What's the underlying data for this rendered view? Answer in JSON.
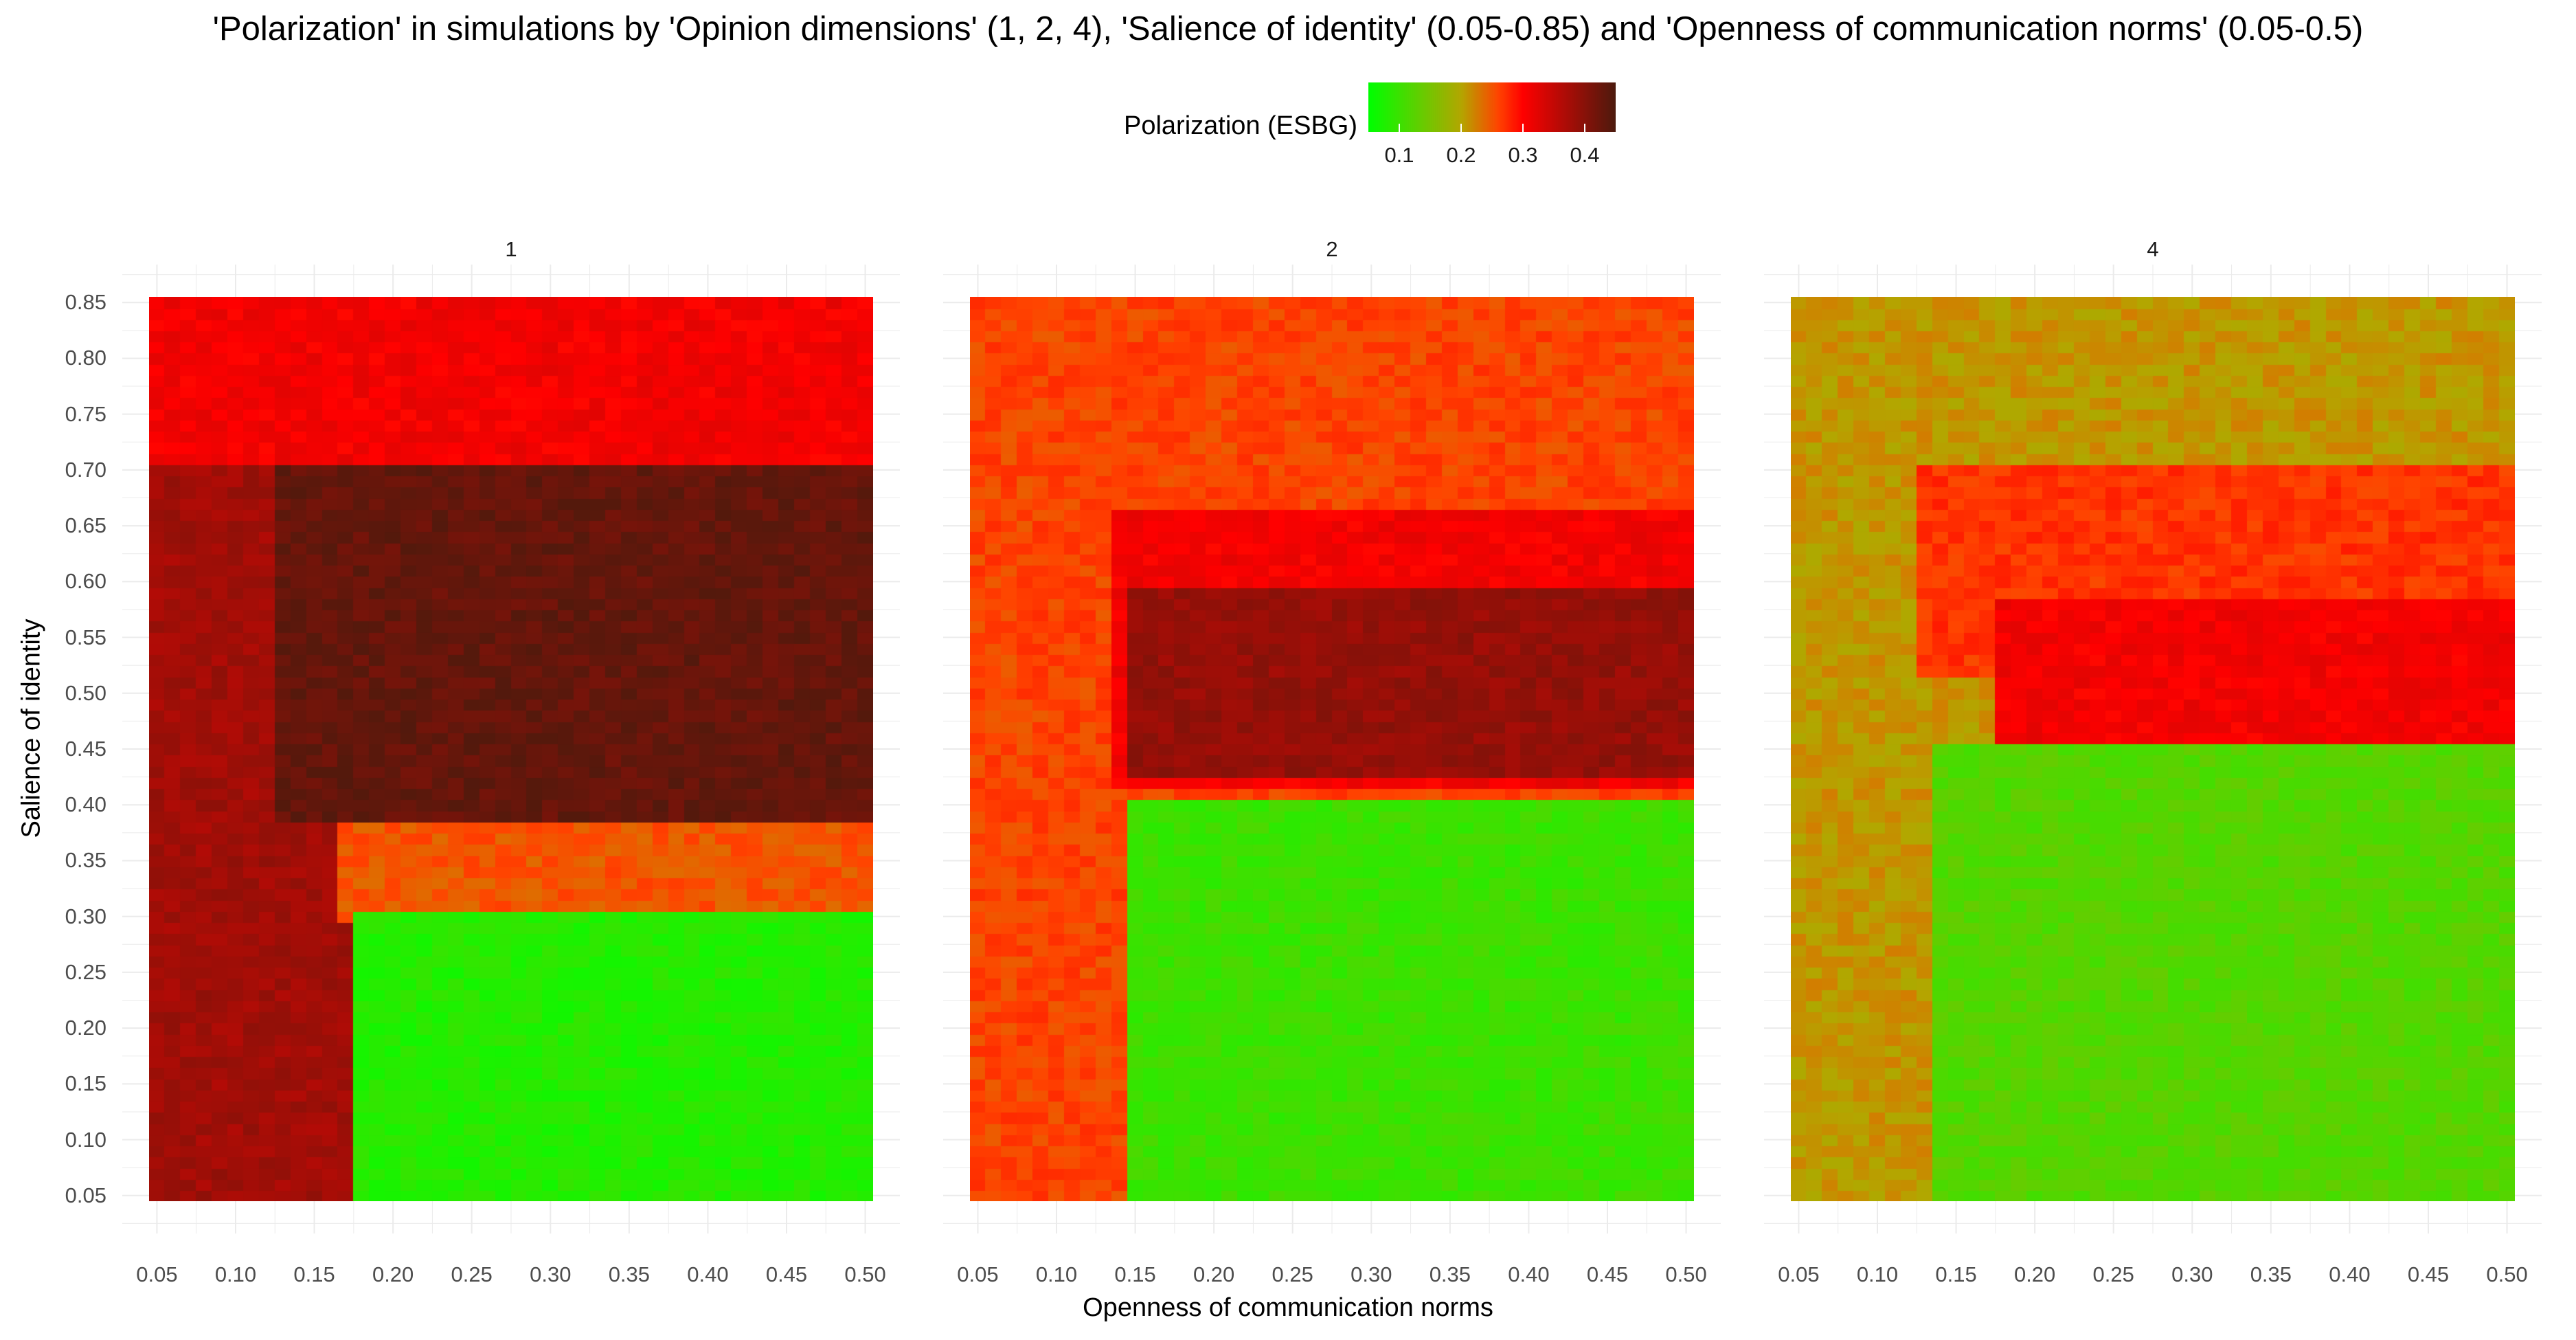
{
  "title": "'Polarization' in simulations by 'Opinion dimensions' (1, 2, 4), 'Salience of identity' (0.05-0.85) and 'Openness of communication norms' (0.05-0.5)",
  "colors": {
    "scale": [
      "#00ff00",
      "#b3a600",
      "#ff4400",
      "#ff0000",
      "#4d1a0d"
    ],
    "scale_breaks": [
      0.05,
      0.2,
      0.26,
      0.3,
      0.45
    ],
    "grid": "#ebebeb",
    "background": "#ffffff"
  },
  "chart_data": {
    "type": "heatmap",
    "title": "'Polarization' in simulations by 'Opinion dimensions' (1, 2, 4), 'Salience of identity' (0.05-0.85) and 'Openness of communication norms' (0.05-0.5)",
    "xlabel": "Openness of communication norms",
    "ylabel": "Salience of identity",
    "x_ticks": [
      "0.05",
      "0.10",
      "0.15",
      "0.20",
      "0.25",
      "0.30",
      "0.35",
      "0.40",
      "0.45",
      "0.50"
    ],
    "y_ticks": [
      "0.05",
      "0.10",
      "0.15",
      "0.20",
      "0.25",
      "0.30",
      "0.35",
      "0.40",
      "0.45",
      "0.50",
      "0.55",
      "0.60",
      "0.65",
      "0.70",
      "0.75",
      "0.80",
      "0.85"
    ],
    "xlim": [
      0.05,
      0.5
    ],
    "ylim": [
      0.05,
      0.85
    ],
    "x_step": 0.01,
    "y_step": 0.01,
    "grid": true,
    "legend": {
      "title": "Polarization (ESBG)",
      "position": "top",
      "ticks": [
        "0.1",
        "0.2",
        "0.3",
        "0.4"
      ],
      "range": [
        0.05,
        0.45
      ]
    },
    "facets": [
      {
        "label": "1",
        "regions": [
          {
            "x": [
              0.05,
              0.5
            ],
            "y": [
              0.05,
              0.85
            ],
            "value": 0.31
          },
          {
            "x": [
              0.05,
              0.13
            ],
            "y": [
              0.05,
              0.7
            ],
            "value": 0.38
          },
          {
            "x": [
              0.13,
              0.5
            ],
            "y": [
              0.38,
              0.7
            ],
            "value": 0.43
          },
          {
            "x": [
              0.13,
              0.17
            ],
            "y": [
              0.05,
              0.38
            ],
            "value": 0.38
          },
          {
            "x": [
              0.17,
              0.5
            ],
            "y": [
              0.3,
              0.38
            ],
            "value": 0.25
          },
          {
            "x": [
              0.18,
              0.5
            ],
            "y": [
              0.05,
              0.3
            ],
            "value": 0.08
          }
        ]
      },
      {
        "label": "2",
        "regions": [
          {
            "x": [
              0.05,
              0.5
            ],
            "y": [
              0.05,
              0.85
            ],
            "value": 0.26
          },
          {
            "x": [
              0.14,
              0.5
            ],
            "y": [
              0.42,
              0.66
            ],
            "value": 0.31
          },
          {
            "x": [
              0.15,
              0.5
            ],
            "y": [
              0.43,
              0.59
            ],
            "value": 0.39
          },
          {
            "x": [
              0.15,
              0.5
            ],
            "y": [
              0.05,
              0.4
            ],
            "value": 0.1
          }
        ]
      },
      {
        "label": "4",
        "regions": [
          {
            "x": [
              0.05,
              0.5
            ],
            "y": [
              0.05,
              0.85
            ],
            "value": 0.21
          },
          {
            "x": [
              0.13,
              0.5
            ],
            "y": [
              0.52,
              0.7
            ],
            "value": 0.27
          },
          {
            "x": [
              0.18,
              0.5
            ],
            "y": [
              0.46,
              0.58
            ],
            "value": 0.31
          },
          {
            "x": [
              0.14,
              0.5
            ],
            "y": [
              0.05,
              0.45
            ],
            "value": 0.12
          }
        ]
      }
    ]
  }
}
